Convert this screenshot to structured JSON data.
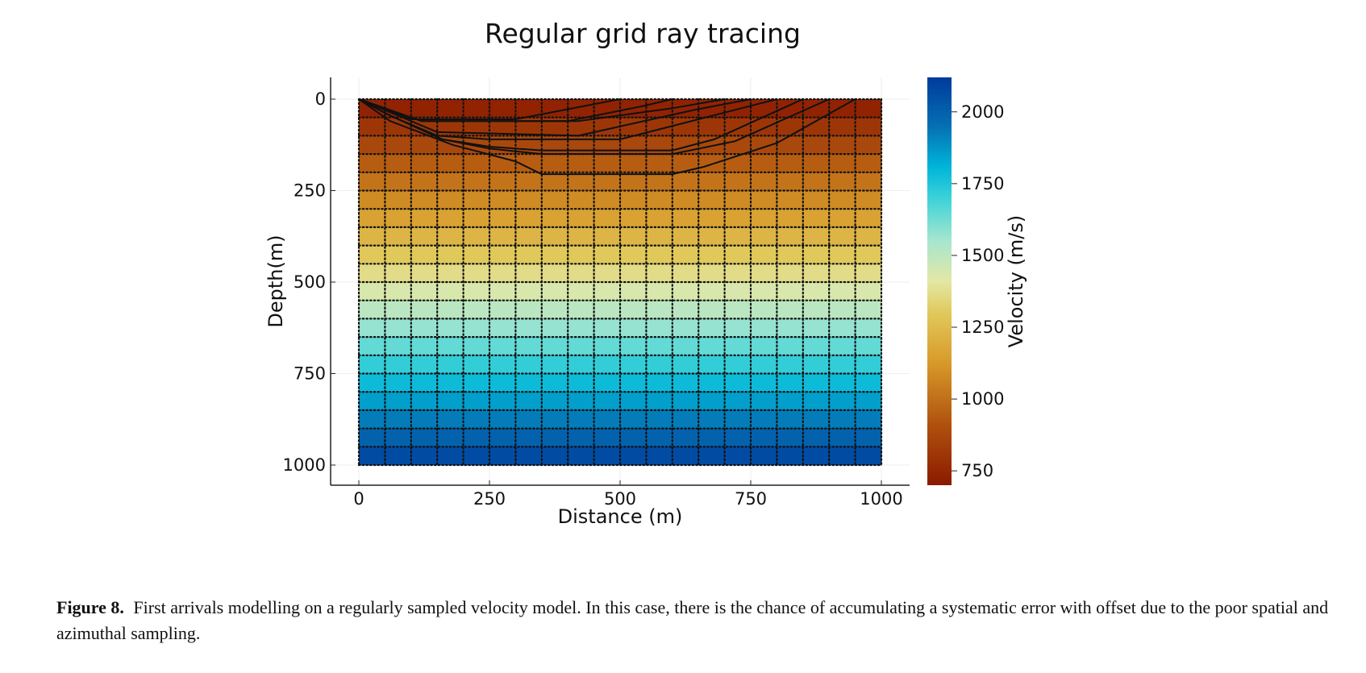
{
  "chart_data": {
    "type": "heatmap",
    "title": "Regular grid ray tracing",
    "xlabel": "Distance (m)",
    "ylabel": "Depth(m)",
    "xlim": [
      0,
      1000
    ],
    "ylim": [
      0,
      1000
    ],
    "y_inverted": true,
    "xticks": [
      0,
      250,
      500,
      750,
      1000
    ],
    "yticks": [
      0,
      250,
      500,
      750,
      1000
    ],
    "grid": "light",
    "grid_spacing_x": 50,
    "grid_spacing_y": 50,
    "velocity_top": 700,
    "velocity_bottom": 2100,
    "colorbar": {
      "label": "Velocity (m/s)",
      "ticks": [
        750,
        1000,
        1250,
        1500,
        1750,
        2000
      ],
      "range": [
        700,
        2120
      ],
      "colormap": [
        [
          0.0,
          "#8b1a00"
        ],
        [
          0.15,
          "#b0520e"
        ],
        [
          0.3,
          "#d79a2a"
        ],
        [
          0.42,
          "#e0c85a"
        ],
        [
          0.5,
          "#e3e8a4"
        ],
        [
          0.6,
          "#a6e6cf"
        ],
        [
          0.7,
          "#3fd3d8"
        ],
        [
          0.78,
          "#00b5d9"
        ],
        [
          0.88,
          "#0570b3"
        ],
        [
          1.0,
          "#003a9c"
        ]
      ]
    },
    "rays": [
      {
        "name": "ray-1",
        "x": [
          0,
          20,
          40,
          100,
          300,
          500
        ],
        "y": [
          0,
          10,
          20,
          55,
          55,
          0
        ]
      },
      {
        "name": "ray-2",
        "x": [
          0,
          40,
          120,
          400,
          540,
          600
        ],
        "y": [
          0,
          20,
          60,
          60,
          20,
          0
        ]
      },
      {
        "name": "ray-3",
        "x": [
          0,
          40,
          120,
          420,
          600,
          700
        ],
        "y": [
          0,
          20,
          60,
          60,
          25,
          0
        ]
      },
      {
        "name": "ray-4",
        "x": [
          0,
          50,
          150,
          420,
          640,
          750
        ],
        "y": [
          0,
          30,
          90,
          100,
          30,
          0
        ]
      },
      {
        "name": "ray-5",
        "x": [
          0,
          60,
          150,
          250,
          500,
          650,
          800
        ],
        "y": [
          0,
          45,
          100,
          110,
          110,
          55,
          0
        ]
      },
      {
        "name": "ray-6",
        "x": [
          0,
          60,
          160,
          250,
          350,
          600,
          680,
          850
        ],
        "y": [
          0,
          45,
          110,
          130,
          140,
          140,
          110,
          0
        ]
      },
      {
        "name": "ray-7",
        "x": [
          0,
          60,
          160,
          250,
          350,
          600,
          720,
          900
        ],
        "y": [
          0,
          45,
          110,
          135,
          150,
          150,
          115,
          0
        ]
      },
      {
        "name": "ray-8",
        "x": [
          0,
          60,
          180,
          300,
          350,
          600,
          660,
          800,
          950
        ],
        "y": [
          0,
          60,
          125,
          170,
          205,
          205,
          185,
          120,
          0
        ]
      }
    ]
  },
  "caption": {
    "label": "Figure 8.",
    "text": "First arrivals modelling on a regularly sampled velocity model. In this case, there is the chance of accumulating a systematic error with offset due to the poor spatial and azimuthal sampling."
  }
}
